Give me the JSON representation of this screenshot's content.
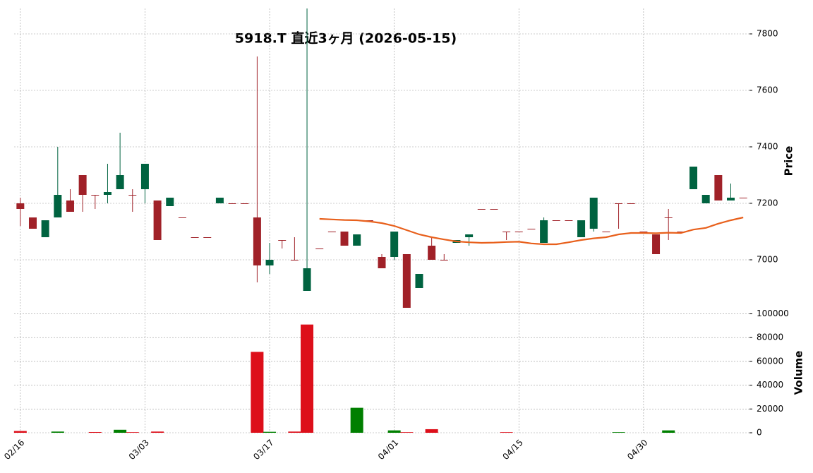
{
  "chart_data": {
    "type": "candlestick",
    "title": "5918.T 直近3ヶ月 (2026-05-15)",
    "categories": [
      "02/16",
      null,
      null,
      null,
      null,
      null,
      null,
      null,
      null,
      null,
      "03/03",
      null,
      null,
      null,
      null,
      null,
      null,
      null,
      null,
      null,
      "03/17",
      null,
      null,
      null,
      null,
      null,
      null,
      null,
      null,
      null,
      "04/01",
      null,
      null,
      null,
      null,
      null,
      null,
      null,
      null,
      null,
      "04/15",
      null,
      null,
      null,
      null,
      null,
      null,
      null,
      null,
      null,
      "04/30",
      null,
      null,
      null,
      null,
      null,
      null,
      null,
      null
    ],
    "open": [
      7200,
      7150,
      7080,
      7150,
      7210,
      7300,
      7230,
      7230,
      7250,
      7230,
      7250,
      7210,
      7190,
      7150,
      7080,
      7080,
      7200,
      7200,
      7200,
      7150,
      6980,
      7070,
      7000,
      6890,
      7040,
      7100,
      7100,
      7050,
      7140,
      7010,
      7010,
      7020,
      6900,
      7050,
      7000,
      7060,
      7080,
      7180,
      7180,
      7100,
      7100,
      7110,
      7060,
      7140,
      7140,
      7080,
      7110,
      7100,
      7200,
      7200,
      7100,
      7090,
      7150,
      7100,
      7250,
      7200,
      7300,
      7210,
      7220
    ],
    "high": [
      7220,
      7150,
      7140,
      7400,
      7250,
      7300,
      7230,
      7340,
      7450,
      7250,
      7340,
      7210,
      7220,
      7150,
      7080,
      7080,
      7220,
      7200,
      7200,
      7720,
      7060,
      7070,
      7080,
      7890,
      7040,
      7100,
      7100,
      7090,
      7140,
      7020,
      7100,
      7020,
      6950,
      7080,
      7020,
      7070,
      7090,
      7180,
      7180,
      7100,
      7100,
      7110,
      7150,
      7140,
      7140,
      7140,
      7220,
      7100,
      7200,
      7200,
      7100,
      7090,
      7180,
      7100,
      7330,
      7230,
      7300,
      7270,
      7220
    ],
    "low": [
      7120,
      7110,
      7080,
      7150,
      7170,
      7170,
      7180,
      7200,
      7250,
      7170,
      7200,
      7070,
      7190,
      7150,
      7080,
      7080,
      7200,
      7200,
      7200,
      6920,
      6950,
      7040,
      7000,
      6890,
      7040,
      7100,
      7050,
      7050,
      7140,
      6970,
      7000,
      6830,
      6900,
      7000,
      7000,
      7060,
      7050,
      7180,
      7180,
      7070,
      7100,
      7110,
      7060,
      7140,
      7140,
      7080,
      7100,
      7100,
      7110,
      7200,
      7100,
      7020,
      7070,
      7100,
      7250,
      7200,
      7210,
      7210,
      7220
    ],
    "close": [
      7180,
      7110,
      7140,
      7230,
      7170,
      7230,
      7230,
      7240,
      7300,
      7230,
      7340,
      7070,
      7220,
      7150,
      7080,
      7080,
      7220,
      7200,
      7200,
      6980,
      7000,
      7070,
      7000,
      6970,
      7040,
      7100,
      7050,
      7090,
      7140,
      6970,
      7100,
      6830,
      6950,
      7000,
      7000,
      7070,
      7090,
      7180,
      7180,
      7100,
      7100,
      7110,
      7140,
      7140,
      7140,
      7140,
      7220,
      7100,
      7200,
      7200,
      7100,
      7020,
      7150,
      7100,
      7330,
      7230,
      7210,
      7220,
      7220
    ],
    "up_color": "#006340",
    "down_color": "#a02128",
    "ylim": [
      6820,
      7890
    ],
    "yticks": [
      7000,
      7200,
      7400,
      7600,
      7800
    ],
    "y_label": "Price",
    "grid": true,
    "moving_average": {
      "color": "#e8601c",
      "values": [
        null,
        null,
        null,
        null,
        null,
        null,
        null,
        null,
        null,
        null,
        null,
        null,
        null,
        null,
        null,
        null,
        null,
        null,
        null,
        null,
        null,
        null,
        null,
        null,
        7145,
        7143,
        7141,
        7140,
        7136,
        7130,
        7120,
        7105,
        7090,
        7080,
        7072,
        7065,
        7062,
        7060,
        7061,
        7063,
        7064,
        7058,
        7055,
        7055,
        7062,
        7070,
        7076,
        7080,
        7090,
        7095,
        7095,
        7094,
        7096,
        7095,
        7107,
        7113,
        7128,
        7140,
        7150
      ]
    },
    "volume": {
      "label": "Volume",
      "values": [
        1500,
        0,
        0,
        1000,
        0,
        0,
        600,
        0,
        2500,
        500,
        0,
        1000,
        0,
        0,
        0,
        0,
        0,
        0,
        0,
        68000,
        800,
        0,
        1000,
        91000,
        0,
        0,
        0,
        21000,
        0,
        0,
        2000,
        500,
        0,
        3000,
        0,
        0,
        0,
        0,
        0,
        500,
        0,
        0,
        0,
        0,
        0,
        0,
        0,
        0,
        500,
        0,
        0,
        0,
        2000,
        0,
        0,
        0,
        0,
        0,
        0
      ],
      "colors": [
        "#dd0f1a",
        "#dd0f1a",
        "#007f00",
        "#007f00",
        "#dd0f1a",
        "#dd0f1a",
        "#dd0f1a",
        "#007f00",
        "#007f00",
        "#dd0f1a",
        "#007f00",
        "#dd0f1a",
        "#007f00",
        "#dd0f1a",
        "#dd0f1a",
        "#dd0f1a",
        "#007f00",
        "#dd0f1a",
        "#dd0f1a",
        "#dd0f1a",
        "#007f00",
        "#dd0f1a",
        "#dd0f1a",
        "#dd0f1a",
        "#007f00",
        "#007f00",
        "#dd0f1a",
        "#007f00",
        "#007f00",
        "#dd0f1a",
        "#007f00",
        "#dd0f1a",
        "#007f00",
        "#dd0f1a",
        "#dd0f1a",
        "#007f00",
        "#007f00",
        "#007f00",
        "#dd0f1a",
        "#dd0f1a",
        "#dd0f1a",
        "#007f00",
        "#007f00",
        "#dd0f1a",
        "#dd0f1a",
        "#dd0f1a",
        "#007f00",
        "#dd0f1a",
        "#007f00",
        "#dd0f1a",
        "#dd0f1a",
        "#dd0f1a",
        "#007f00",
        "#dd0f1a",
        "#007f00",
        "#dd0f1a",
        "#dd0f1a",
        "#007f00",
        "#dd0f1a"
      ],
      "ylim": [
        0,
        101500
      ],
      "yticks": [
        0,
        20000,
        40000,
        60000,
        80000,
        100000
      ]
    }
  }
}
